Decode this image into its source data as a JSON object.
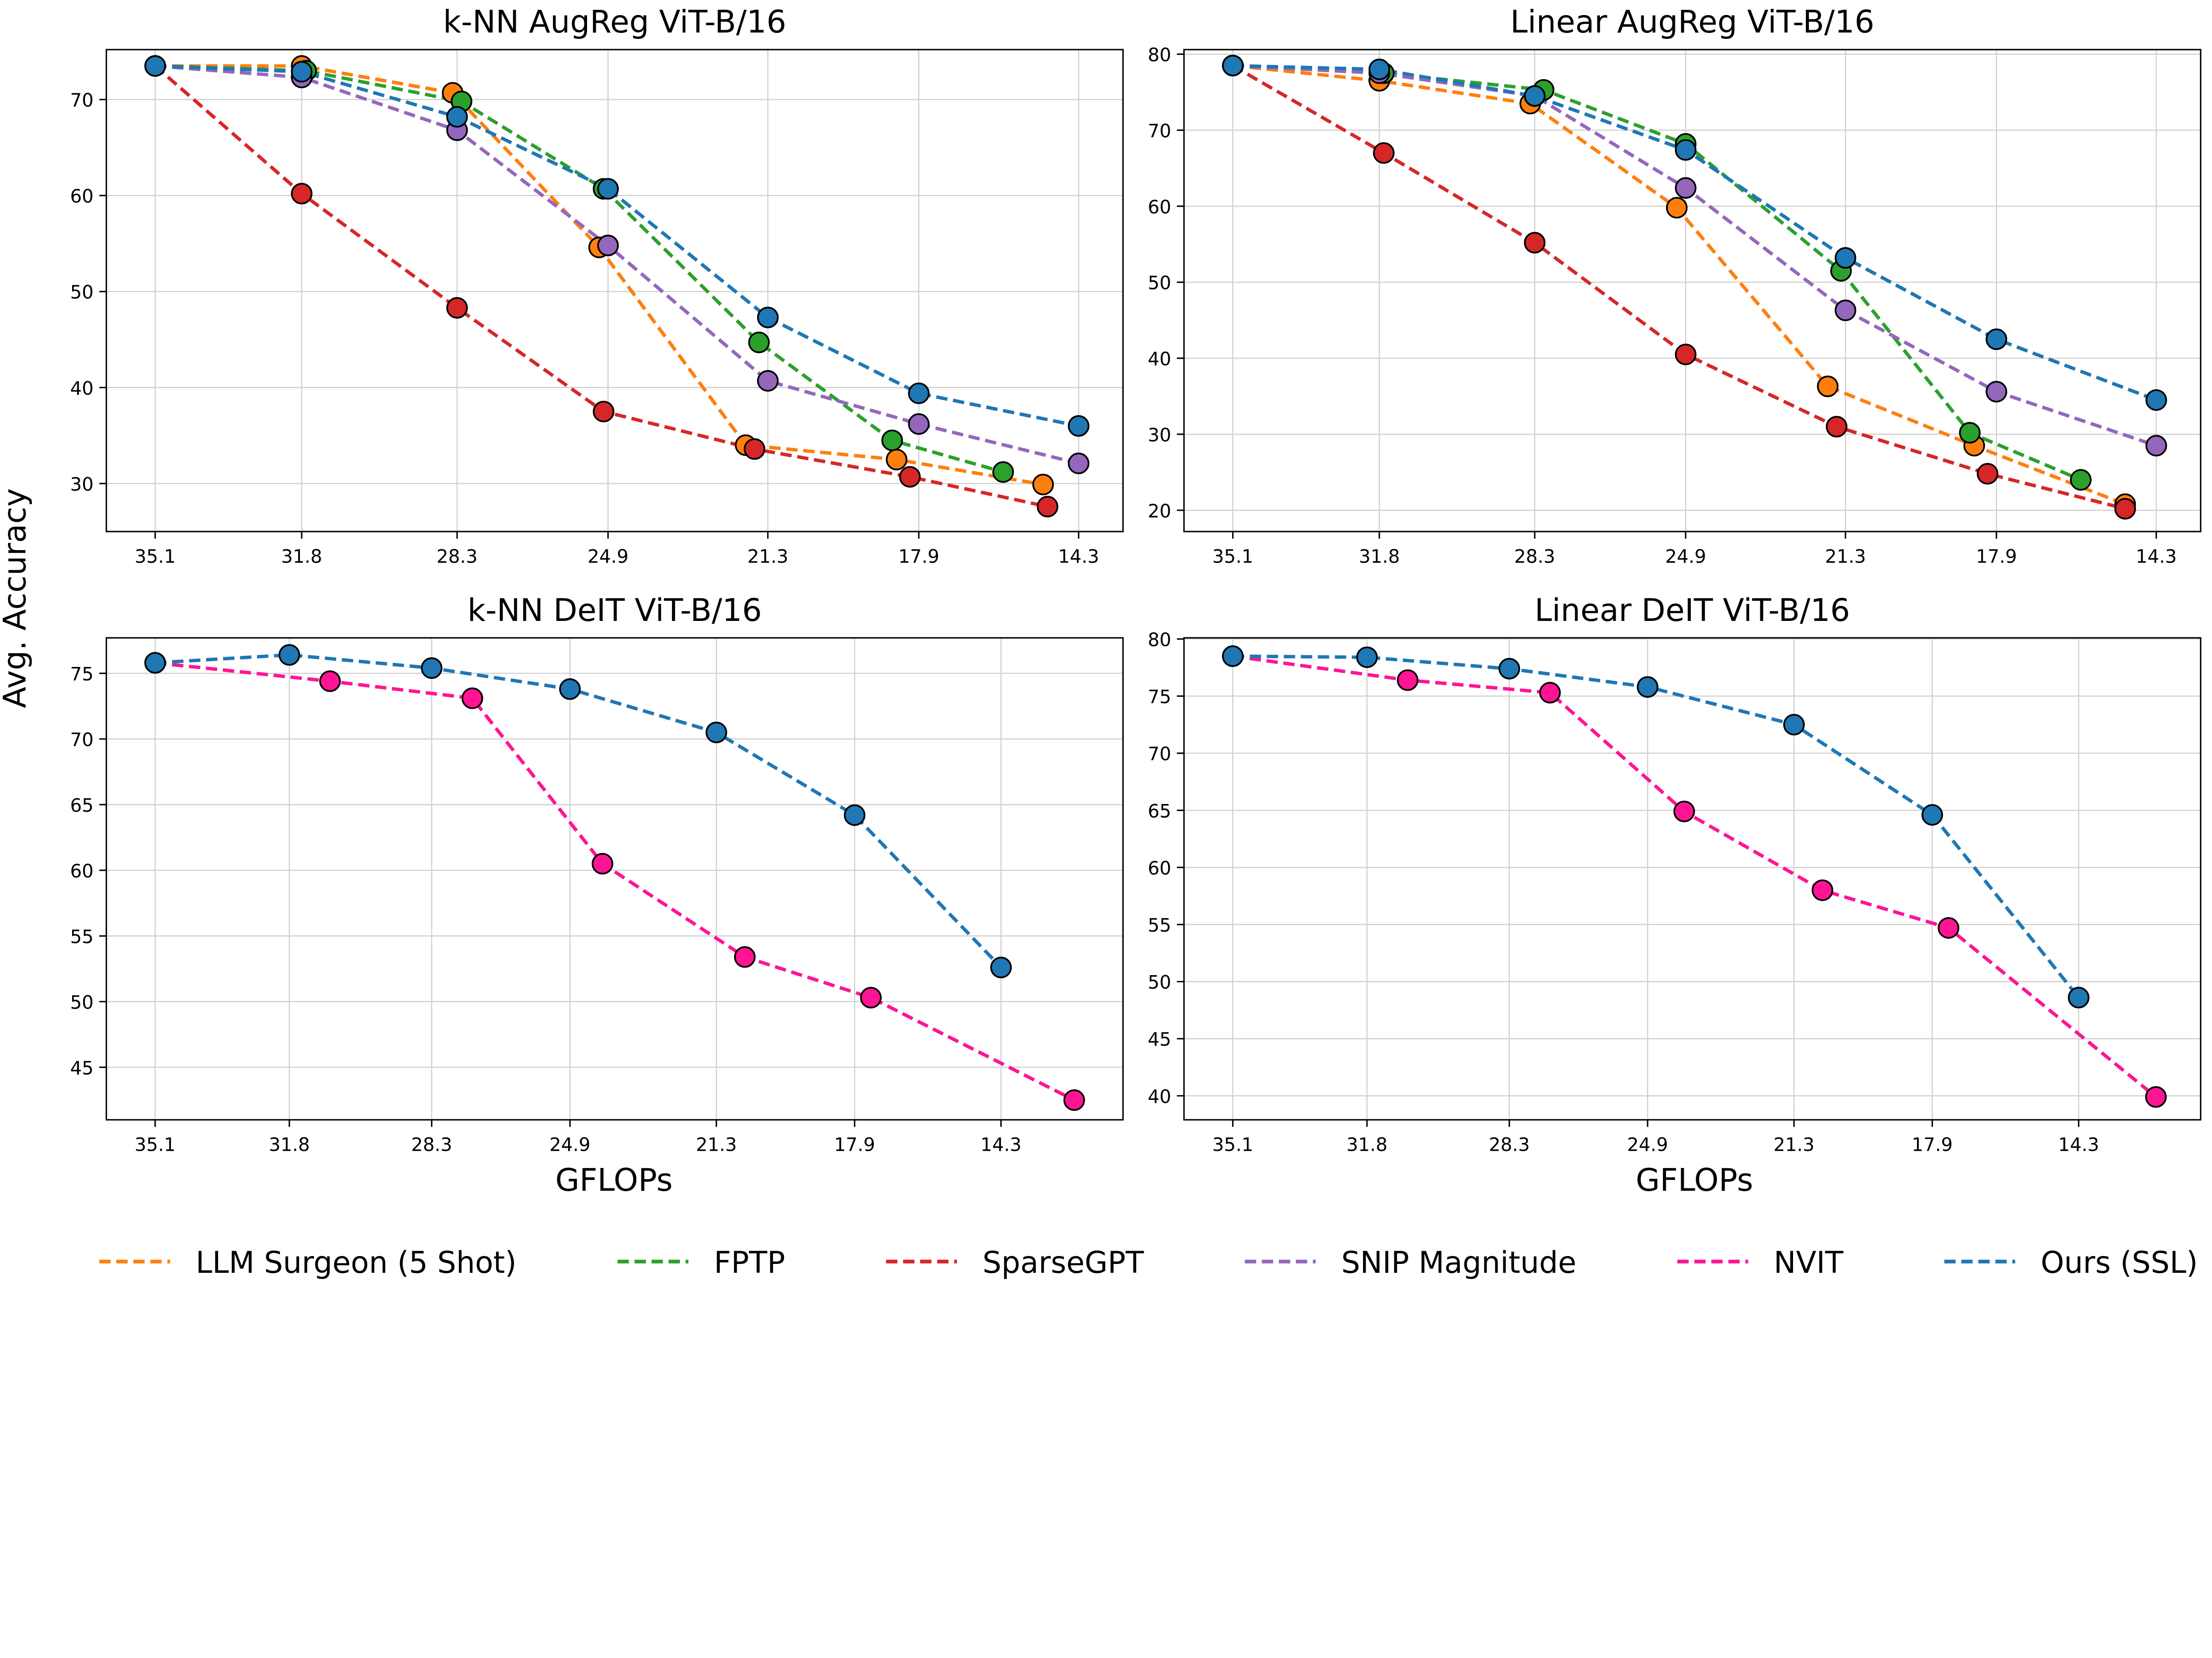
{
  "figure": {
    "ylabel": "Avg. Accuracy",
    "xlabel": "GFLOPs",
    "legend": {
      "placement": "bottom",
      "entries": [
        {
          "name": "LLM Surgeon (5 Shot)",
          "color": "#ff7f0e"
        },
        {
          "name": "FPTP",
          "color": "#2ca02c"
        },
        {
          "name": "SparseGPT",
          "color": "#d62728"
        },
        {
          "name": "SNIP Magnitude",
          "color": "#9467bd"
        },
        {
          "name": "NVIT",
          "color": "#ff1493"
        },
        {
          "name": "Ours (SSL)",
          "color": "#1f77b4"
        }
      ]
    }
  },
  "chart_data": [
    {
      "type": "line",
      "title": "k-NN AugReg ViT-B/16",
      "xlabel": "",
      "ylabel": "Avg. Accuracy",
      "xticks": [
        35.1,
        31.8,
        28.3,
        24.9,
        21.3,
        17.9,
        14.3
      ],
      "yticks": [
        30,
        40,
        50,
        60,
        70
      ],
      "xlim": [
        36.2,
        13.3
      ],
      "ylim": [
        25,
        75.2
      ],
      "x_reversed": true,
      "grid": true,
      "series": [
        {
          "name": "LLM Surgeon (5 Shot)",
          "color": "#ff7f0e",
          "x": [
            35.1,
            31.8,
            28.4,
            25.1,
            21.8,
            18.4,
            15.1
          ],
          "y": [
            73.5,
            73.5,
            70.7,
            54.6,
            34.0,
            32.5,
            29.9
          ]
        },
        {
          "name": "FPTP",
          "color": "#2ca02c",
          "x": [
            35.1,
            31.7,
            28.2,
            25.0,
            21.5,
            18.5,
            16.0
          ],
          "y": [
            73.5,
            73.0,
            69.8,
            60.7,
            44.7,
            34.5,
            31.2
          ]
        },
        {
          "name": "SparseGPT",
          "color": "#d62728",
          "x": [
            35.1,
            31.8,
            28.3,
            25.0,
            21.6,
            18.1,
            15.0
          ],
          "y": [
            73.5,
            60.2,
            48.3,
            37.5,
            33.6,
            30.7,
            27.6
          ]
        },
        {
          "name": "SNIP Magnitude",
          "color": "#9467bd",
          "x": [
            35.1,
            31.8,
            28.3,
            24.9,
            21.3,
            17.9,
            14.3
          ],
          "y": [
            73.5,
            72.3,
            66.8,
            54.8,
            40.7,
            36.2,
            32.1
          ]
        },
        {
          "name": "Ours (SSL)",
          "color": "#1f77b4",
          "x": [
            35.1,
            31.8,
            28.3,
            24.9,
            21.3,
            17.9,
            14.3
          ],
          "y": [
            73.5,
            72.9,
            68.2,
            60.7,
            47.3,
            39.4,
            36.0
          ]
        }
      ]
    },
    {
      "type": "line",
      "title": "Linear AugReg ViT-B/16",
      "xlabel": "",
      "ylabel": "",
      "xticks": [
        35.1,
        31.8,
        28.3,
        24.9,
        21.3,
        17.9,
        14.3
      ],
      "yticks": [
        20,
        30,
        40,
        50,
        60,
        70,
        80
      ],
      "xlim": [
        36.2,
        13.3
      ],
      "ylim": [
        17.2,
        80.6
      ],
      "x_reversed": true,
      "grid": true,
      "series": [
        {
          "name": "LLM Surgeon (5 Shot)",
          "color": "#ff7f0e",
          "x": [
            35.1,
            31.8,
            28.4,
            25.1,
            21.7,
            18.4,
            15.0
          ],
          "y": [
            78.5,
            76.5,
            73.5,
            59.8,
            36.3,
            28.5,
            20.8
          ]
        },
        {
          "name": "FPTP",
          "color": "#2ca02c",
          "x": [
            35.1,
            31.7,
            28.1,
            24.9,
            21.4,
            18.5,
            16.0
          ],
          "y": [
            78.5,
            77.5,
            75.3,
            68.2,
            51.5,
            30.2,
            24.0
          ]
        },
        {
          "name": "SparseGPT",
          "color": "#d62728",
          "x": [
            35.1,
            31.7,
            28.3,
            24.9,
            21.5,
            18.1,
            15.0
          ],
          "y": [
            78.5,
            67.0,
            55.2,
            40.5,
            31.0,
            24.8,
            20.2
          ]
        },
        {
          "name": "SNIP Magnitude",
          "color": "#9467bd",
          "x": [
            35.1,
            31.8,
            28.3,
            24.9,
            21.3,
            17.9,
            14.3
          ],
          "y": [
            78.5,
            77.5,
            74.5,
            62.4,
            46.3,
            35.6,
            28.5
          ]
        },
        {
          "name": "Ours (SSL)",
          "color": "#1f77b4",
          "x": [
            35.1,
            31.8,
            28.3,
            24.9,
            21.3,
            17.9,
            14.3
          ],
          "y": [
            78.5,
            78.0,
            74.5,
            67.4,
            53.2,
            42.5,
            34.5
          ]
        }
      ]
    },
    {
      "type": "line",
      "title": "k-NN DeIT ViT-B/16",
      "xlabel": "GFLOPs",
      "ylabel": "",
      "xticks": [
        35.1,
        31.8,
        28.3,
        24.9,
        21.3,
        17.9,
        14.3
      ],
      "yticks": [
        45,
        50,
        55,
        60,
        65,
        70,
        75
      ],
      "xlim": [
        36.3,
        11.3
      ],
      "ylim": [
        41.0,
        77.7
      ],
      "x_reversed": true,
      "grid": true,
      "series": [
        {
          "name": "NVIT",
          "color": "#ff1493",
          "x": [
            35.1,
            30.8,
            27.3,
            24.1,
            20.6,
            17.5,
            12.5
          ],
          "y": [
            75.8,
            74.4,
            73.1,
            60.5,
            53.4,
            50.3,
            42.5
          ]
        },
        {
          "name": "Ours (SSL)",
          "color": "#1f77b4",
          "x": [
            35.1,
            31.8,
            28.3,
            24.9,
            21.3,
            17.9,
            14.3
          ],
          "y": [
            75.8,
            76.4,
            75.4,
            73.8,
            70.5,
            64.2,
            52.6
          ]
        }
      ]
    },
    {
      "type": "line",
      "title": "Linear DeIT ViT-B/16",
      "xlabel": "GFLOPs",
      "ylabel": "",
      "xticks": [
        35.1,
        31.8,
        28.3,
        24.9,
        21.3,
        17.9,
        14.3
      ],
      "yticks": [
        40,
        45,
        50,
        55,
        60,
        65,
        70,
        75,
        80
      ],
      "xlim": [
        36.3,
        11.3
      ],
      "ylim": [
        37.9,
        80.1
      ],
      "x_reversed": true,
      "grid": true,
      "series": [
        {
          "name": "NVIT",
          "color": "#ff1493",
          "x": [
            35.1,
            30.8,
            27.3,
            24.0,
            20.6,
            17.5,
            12.4
          ],
          "y": [
            78.5,
            76.4,
            75.3,
            64.9,
            58.0,
            54.7,
            39.9
          ]
        },
        {
          "name": "Ours (SSL)",
          "color": "#1f77b4",
          "x": [
            35.1,
            31.8,
            28.3,
            24.9,
            21.3,
            17.9,
            14.3
          ],
          "y": [
            78.5,
            78.4,
            77.4,
            75.8,
            72.5,
            64.6,
            48.6
          ]
        }
      ]
    }
  ]
}
